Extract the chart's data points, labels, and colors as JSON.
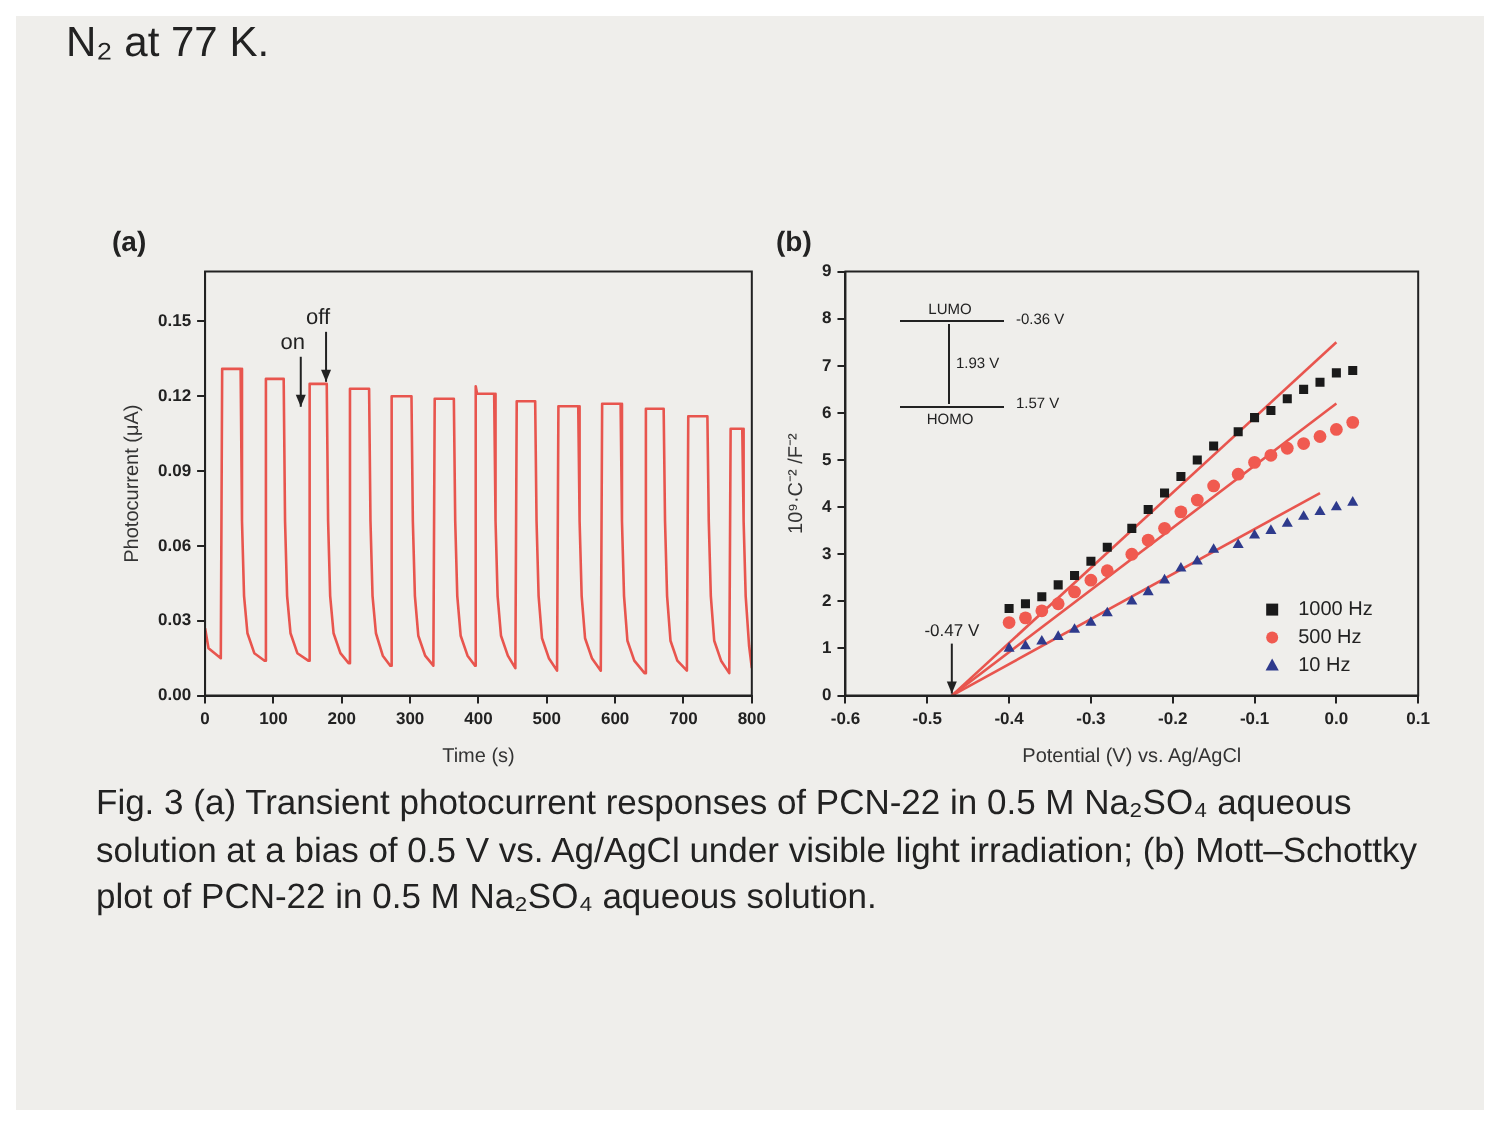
{
  "chart_data": [
    {
      "type": "other",
      "annotations": [
        "N₂ at 77 K."
      ]
    },
    {
      "type": "line",
      "title": "(a)",
      "xlabel": "Time (s)",
      "ylabel": "Photocurrent (μA)",
      "marker": "none",
      "grid": false,
      "legend": false,
      "xlim": [
        0,
        800
      ],
      "xticks": [
        0,
        100,
        200,
        300,
        400,
        500,
        600,
        700,
        800
      ],
      "ylim": [
        0,
        0.17
      ],
      "yticks": [
        {
          "value": 0,
          "label": "0.00"
        },
        0.03,
        0.06,
        0.09,
        0.12,
        0.15
      ],
      "x": [
        0,
        5,
        23,
        25,
        52,
        54,
        57,
        62,
        72,
        87,
        89,
        115,
        117,
        120,
        125,
        135,
        151,
        153,
        178,
        180,
        183,
        188,
        198,
        210,
        212,
        240,
        242,
        245,
        250,
        260,
        271,
        273,
        302,
        304,
        307,
        312,
        322,
        334,
        336,
        364,
        366,
        369,
        374,
        384,
        395,
        396,
        398,
        423,
        425,
        428,
        433,
        443,
        454,
        456,
        483,
        485,
        488,
        493,
        503,
        515,
        517,
        546,
        548,
        551,
        556,
        566,
        579,
        581,
        608,
        610,
        613,
        618,
        628,
        643,
        645,
        671,
        673,
        676,
        681,
        691,
        705,
        707,
        735,
        737,
        740,
        745,
        755,
        767,
        769,
        786,
        788,
        791,
        796,
        800
      ],
      "series": [
        {
          "color": "#e8554e",
          "values": [
            0.027,
            0.019,
            0.015,
            0.131,
            0.131,
            0.07,
            0.04,
            0.025,
            0.017,
            0.014,
            0.127,
            0.127,
            0.07,
            0.04,
            0.025,
            0.017,
            0.014,
            0.125,
            0.125,
            0.07,
            0.04,
            0.025,
            0.017,
            0.013,
            0.123,
            0.123,
            0.07,
            0.04,
            0.025,
            0.016,
            0.012,
            0.12,
            0.12,
            0.07,
            0.04,
            0.024,
            0.016,
            0.012,
            0.119,
            0.119,
            0.07,
            0.04,
            0.024,
            0.016,
            0.012,
            0.124,
            0.121,
            0.121,
            0.07,
            0.04,
            0.024,
            0.016,
            0.011,
            0.118,
            0.118,
            0.07,
            0.04,
            0.023,
            0.015,
            0.01,
            0.116,
            0.116,
            0.07,
            0.04,
            0.023,
            0.015,
            0.01,
            0.117,
            0.117,
            0.07,
            0.04,
            0.022,
            0.014,
            0.009,
            0.115,
            0.115,
            0.07,
            0.04,
            0.022,
            0.014,
            0.01,
            0.112,
            0.112,
            0.07,
            0.04,
            0.022,
            0.014,
            0.009,
            0.107,
            0.107,
            0.07,
            0.04,
            0.02,
            0.011
          ]
        }
      ],
      "annotations": [
        {
          "text": "on",
          "x": 140,
          "y": 0.115
        },
        {
          "text": "off",
          "x": 177,
          "y": 0.125
        }
      ]
    },
    {
      "type": "scatter",
      "title": "(b)",
      "xlabel": "Potential (V) vs. Ag/AgCl",
      "ylabel": "10⁹·C⁻² /F⁻²",
      "grid": false,
      "legend": "bottom right",
      "xlim": [
        -0.6,
        0.1
      ],
      "xticks": [
        -0.6,
        -0.5,
        -0.4,
        -0.3,
        -0.2,
        -0.1,
        {
          "value": 0,
          "label": "0.0"
        },
        0.1
      ],
      "ylim": [
        0,
        9
      ],
      "yticks": [
        0,
        1,
        2,
        3,
        4,
        5,
        6,
        7,
        8,
        9
      ],
      "x": [
        -0.4,
        -0.38,
        -0.36,
        -0.34,
        -0.32,
        -0.3,
        -0.28,
        -0.25,
        -0.23,
        -0.21,
        -0.19,
        -0.17,
        -0.15,
        -0.12,
        -0.1,
        -0.08,
        -0.06,
        -0.04,
        -0.02,
        0.0,
        0.02
      ],
      "series": [
        {
          "name": "1000 Hz",
          "color": "#1a1a1a",
          "marker": "square",
          "values": [
            1.85,
            1.95,
            2.1,
            2.35,
            2.55,
            2.85,
            3.15,
            3.55,
            3.95,
            4.3,
            4.65,
            5.0,
            5.3,
            5.6,
            5.9,
            6.05,
            6.3,
            6.5,
            6.65,
            6.85,
            6.9
          ]
        },
        {
          "name": "500 Hz",
          "color": "#f05a50",
          "marker": "circle",
          "values": [
            1.55,
            1.65,
            1.8,
            1.95,
            2.2,
            2.45,
            2.65,
            3.0,
            3.3,
            3.55,
            3.9,
            4.15,
            4.45,
            4.7,
            4.95,
            5.1,
            5.25,
            5.35,
            5.5,
            5.65,
            5.8
          ]
        },
        {
          "name": "10 Hz",
          "color": "#2e3a8c",
          "marker": "triangle",
          "values": [
            1.0,
            1.05,
            1.15,
            1.25,
            1.4,
            1.55,
            1.75,
            2.0,
            2.2,
            2.45,
            2.7,
            2.85,
            3.1,
            3.2,
            3.4,
            3.5,
            3.65,
            3.8,
            3.9,
            4.0,
            4.1
          ]
        },
        {
          "type": "line",
          "color": "#e8554e",
          "marker": "none",
          "x": [
            -0.47,
            0.0
          ],
          "values": [
            0,
            7.5
          ]
        },
        {
          "type": "line",
          "color": "#e8554e",
          "marker": "none",
          "x": [
            -0.47,
            0.0
          ],
          "values": [
            0,
            6.2
          ]
        },
        {
          "type": "line",
          "color": "#e8554e",
          "marker": "none",
          "x": [
            -0.47,
            -0.02
          ],
          "values": [
            0,
            4.3
          ]
        }
      ],
      "annotations": [
        "LUMO",
        "HOMO",
        "-0.36 V",
        "1.93 V",
        "1.57 V",
        {
          "text": "-0.47 V",
          "x": -0.47,
          "y": 0
        }
      ]
    },
    {
      "type": "other",
      "annotations": [
        "Fig. 3  (a) Transient photocurrent responses of PCN-22 in 0.5 M Na₂SO₄ aqueous solution at a bias of 0.5 V vs. Ag/AgCl under visible light irradiation; (b) Mott–Schottky plot of PCN-22 in 0.5 M Na₂SO₄ aqueous solution."
      ]
    }
  ]
}
